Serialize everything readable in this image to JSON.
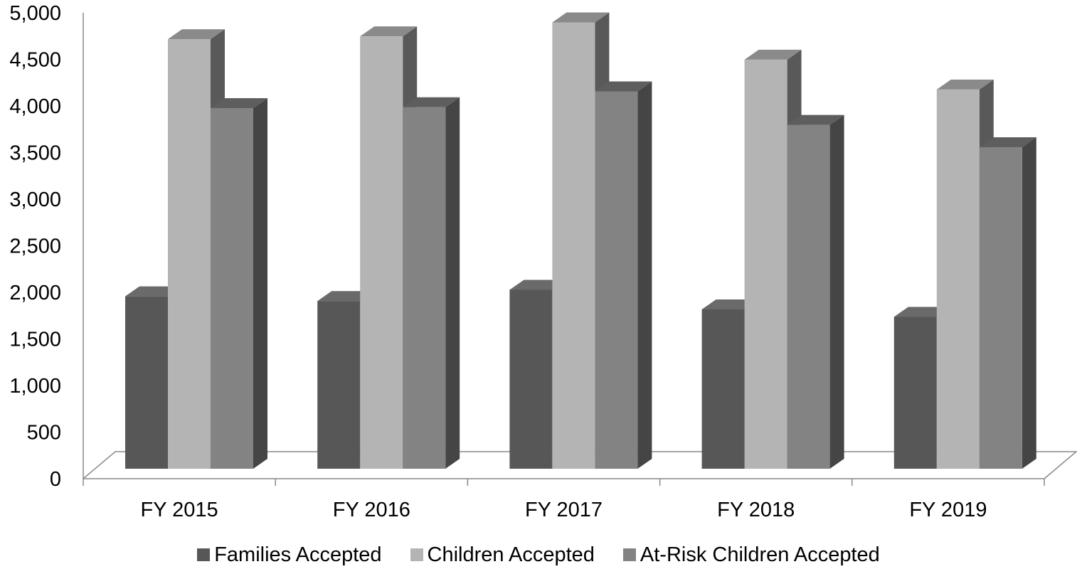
{
  "chart_data": {
    "type": "bar",
    "title": "",
    "xlabel": "",
    "ylabel": "",
    "categories": [
      "FY 2015",
      "FY 2016",
      "FY 2017",
      "FY 2018",
      "FY 2019"
    ],
    "ylim": [
      0,
      5000
    ],
    "yticks": [
      "0",
      "500",
      "1,000",
      "1,500",
      "2,000",
      "2,500",
      "3,000",
      "3,500",
      "4,000",
      "4,500",
      "5,000"
    ],
    "series": [
      {
        "name": "Families Accepted",
        "values": [
          1850,
          1800,
          1920,
          1710,
          1630
        ],
        "color": "#575757",
        "side_color": "#3f3f3f",
        "top_color": "#6a6a6a"
      },
      {
        "name": "Children Accepted",
        "values": [
          4610,
          4640,
          4790,
          4390,
          4070
        ],
        "color": "#b4b4b4",
        "side_color": "#595959",
        "top_color": "#8a8a8a"
      },
      {
        "name": "At-Risk Children Accepted",
        "values": [
          3870,
          3880,
          4050,
          3690,
          3450
        ],
        "color": "#838383",
        "side_color": "#454545",
        "top_color": "#5e5e5e"
      }
    ],
    "grid": false,
    "legend_position": "bottom"
  }
}
